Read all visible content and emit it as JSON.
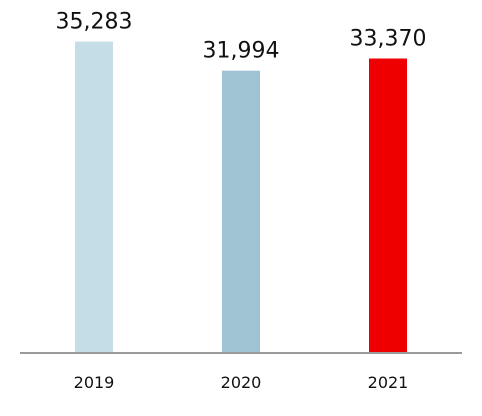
{
  "chart_data": {
    "type": "bar",
    "categories": [
      "2019",
      "2020",
      "2021"
    ],
    "values": [
      35283,
      31994,
      33370
    ],
    "value_labels": [
      "35,283",
      "31,994",
      "33,370"
    ],
    "bar_colors": [
      "#c5dde6",
      "#9fc3d3",
      "#ee0000"
    ],
    "axis_color": "#9a9a9a",
    "title": "",
    "xlabel": "",
    "ylabel": "",
    "ylim": [
      0,
      40000
    ],
    "grid": false,
    "legend": "none"
  }
}
